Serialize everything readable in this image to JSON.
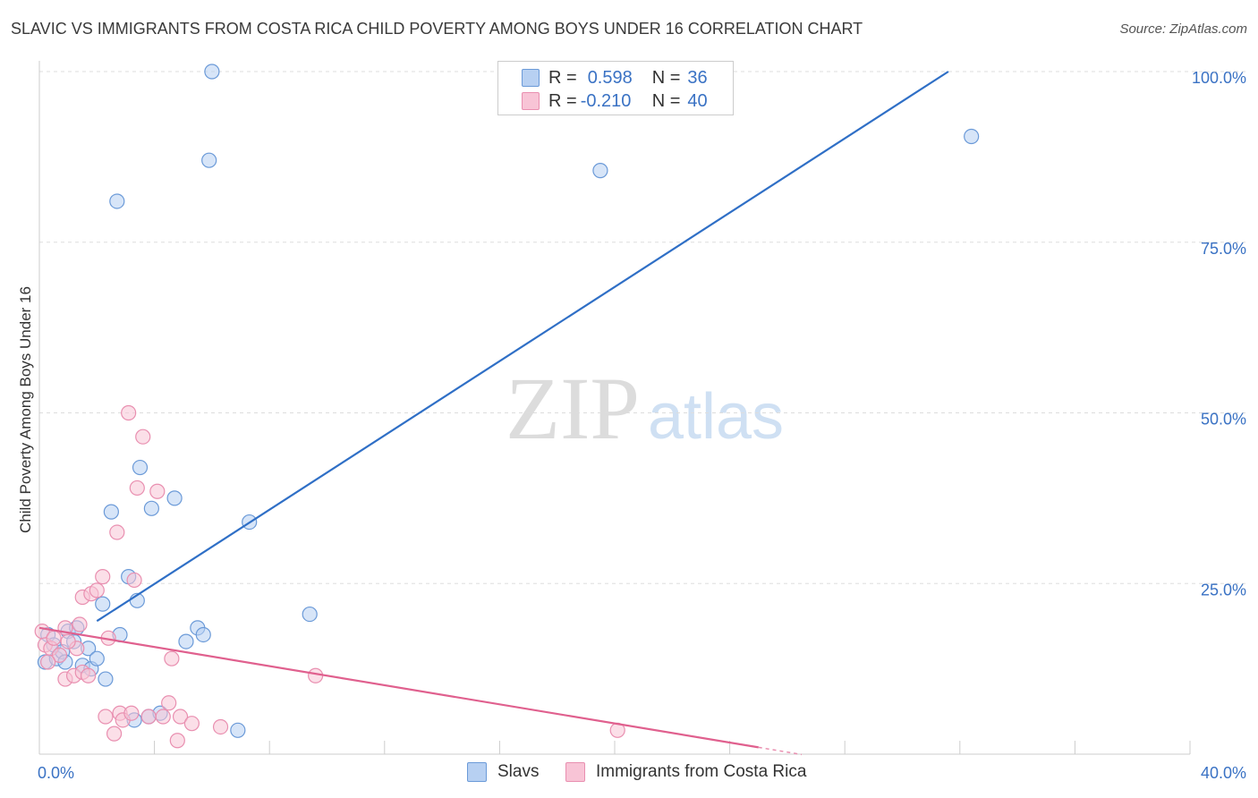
{
  "title": "SLAVIC VS IMMIGRANTS FROM COSTA RICA CHILD POVERTY AMONG BOYS UNDER 16 CORRELATION CHART",
  "source": "Source: ZipAtlas.com",
  "watermark": {
    "zip": "ZIP",
    "atlas": "atlas"
  },
  "legend": {
    "r_label": "R =",
    "n_label": "N =",
    "rows": [
      {
        "r": "0.598",
        "n": "36"
      },
      {
        "r": "-0.210",
        "n": "40"
      }
    ]
  },
  "colors": {
    "blue_fill": "#b7d0f2",
    "blue_edge": "#6b9ad8",
    "blue_line": "#2f6fc6",
    "pink_fill": "#f8c4d6",
    "pink_edge": "#e98fb0",
    "pink_line": "#e0608e",
    "axis_text": "#3a72c4",
    "grid": "#dddddd"
  },
  "chart_data": {
    "type": "scatter",
    "title": "SLAVIC VS IMMIGRANTS FROM COSTA RICA CHILD POVERTY AMONG BOYS UNDER 16 CORRELATION CHART",
    "xlabel": "",
    "ylabel": "Child Poverty Among Boys Under 16",
    "xlim": [
      0,
      40
    ],
    "ylim": [
      0,
      100
    ],
    "x_tick_labels": [
      "0.0%",
      "40.0%"
    ],
    "y_tick_labels": [
      "100.0%",
      "75.0%",
      "50.0%",
      "25.0%"
    ],
    "y_ticks": [
      100,
      75,
      50,
      25
    ],
    "x_ticks_minor": [
      0,
      4,
      8,
      12,
      16,
      20,
      24,
      28,
      32,
      36,
      40
    ],
    "grid": true,
    "series": [
      {
        "name": "Slavs",
        "color": "#6b9ad8",
        "trend": {
          "x": [
            2.0,
            31.6
          ],
          "y": [
            19.5,
            100.0
          ]
        },
        "points": [
          [
            0.2,
            13.5
          ],
          [
            0.3,
            17.5
          ],
          [
            0.5,
            16.0
          ],
          [
            0.6,
            14.0
          ],
          [
            0.8,
            15.0
          ],
          [
            0.9,
            13.5
          ],
          [
            1.0,
            18.0
          ],
          [
            1.2,
            16.5
          ],
          [
            1.3,
            18.5
          ],
          [
            1.5,
            13.0
          ],
          [
            1.7,
            15.5
          ],
          [
            1.8,
            12.5
          ],
          [
            2.0,
            14.0
          ],
          [
            2.2,
            22.0
          ],
          [
            2.3,
            11.0
          ],
          [
            2.5,
            35.5
          ],
          [
            2.7,
            81.0
          ],
          [
            2.8,
            17.5
          ],
          [
            3.1,
            26.0
          ],
          [
            3.3,
            5.0
          ],
          [
            3.4,
            22.5
          ],
          [
            3.5,
            42.0
          ],
          [
            3.8,
            5.5
          ],
          [
            3.9,
            36.0
          ],
          [
            4.2,
            6.0
          ],
          [
            4.7,
            37.5
          ],
          [
            5.1,
            16.5
          ],
          [
            5.5,
            18.5
          ],
          [
            5.7,
            17.5
          ],
          [
            5.9,
            87.0
          ],
          [
            6.0,
            100.0
          ],
          [
            6.9,
            3.5
          ],
          [
            7.3,
            34.0
          ],
          [
            9.4,
            20.5
          ],
          [
            19.5,
            85.5
          ],
          [
            32.4,
            90.5
          ]
        ]
      },
      {
        "name": "Immigrants from Costa Rica",
        "color": "#e98fb0",
        "trend": {
          "x": [
            0.0,
            25.0
          ],
          "y": [
            18.5,
            1.0
          ]
        },
        "points": [
          [
            0.1,
            18.0
          ],
          [
            0.2,
            16.0
          ],
          [
            0.4,
            15.5
          ],
          [
            0.5,
            17.0
          ],
          [
            0.7,
            14.5
          ],
          [
            0.9,
            18.5
          ],
          [
            0.9,
            11.0
          ],
          [
            1.2,
            11.5
          ],
          [
            1.3,
            15.5
          ],
          [
            1.4,
            19.0
          ],
          [
            1.5,
            12.0
          ],
          [
            1.5,
            23.0
          ],
          [
            1.7,
            11.5
          ],
          [
            1.8,
            23.5
          ],
          [
            2.0,
            24.0
          ],
          [
            2.2,
            26.0
          ],
          [
            2.3,
            5.5
          ],
          [
            2.4,
            17.0
          ],
          [
            2.6,
            3.0
          ],
          [
            2.7,
            32.5
          ],
          [
            2.8,
            6.0
          ],
          [
            2.9,
            5.0
          ],
          [
            3.1,
            50.0
          ],
          [
            3.2,
            6.0
          ],
          [
            3.3,
            25.5
          ],
          [
            3.4,
            39.0
          ],
          [
            3.6,
            46.5
          ],
          [
            3.8,
            5.5
          ],
          [
            4.1,
            38.5
          ],
          [
            4.3,
            5.5
          ],
          [
            4.5,
            7.5
          ],
          [
            4.6,
            14.0
          ],
          [
            4.8,
            2.0
          ],
          [
            4.9,
            5.5
          ],
          [
            5.3,
            4.5
          ],
          [
            6.3,
            4.0
          ],
          [
            9.6,
            11.5
          ],
          [
            20.1,
            3.5
          ],
          [
            0.3,
            13.5
          ],
          [
            1.0,
            16.5
          ]
        ]
      }
    ]
  }
}
